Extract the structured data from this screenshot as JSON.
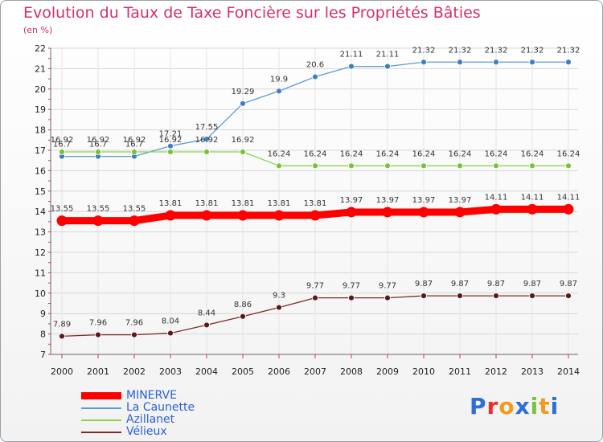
{
  "title": "Evolution du Taux de Taxe Foncière sur les Propriétés Bâties",
  "unit": "(en %)",
  "logo": {
    "text": "Proxiti",
    "colors": [
      "#2e6fd6",
      "#e8312d",
      "#f39a1e",
      "#2e6fd6",
      "#7cc242",
      "#f39a1e",
      "#2e6fd6"
    ]
  },
  "chart_data": {
    "type": "line",
    "x": [
      2000,
      2001,
      2002,
      2003,
      2004,
      2005,
      2006,
      2007,
      2008,
      2009,
      2010,
      2011,
      2012,
      2013,
      2014
    ],
    "ylim": [
      7,
      22
    ],
    "yticks": [
      7,
      8,
      9,
      10,
      11,
      12,
      13,
      14,
      15,
      16,
      17,
      18,
      19,
      20,
      21,
      22
    ],
    "grid": true,
    "series": [
      {
        "name": "MINERVE",
        "color": "#ff0000",
        "values": [
          13.55,
          13.55,
          13.55,
          13.81,
          13.81,
          13.81,
          13.81,
          13.81,
          13.97,
          13.97,
          13.97,
          13.97,
          14.11,
          14.11,
          14.11
        ],
        "labels": [
          "13.55",
          "13.55",
          "13.55",
          "13.81",
          "13.81",
          "13.81",
          "13.81",
          "13.81",
          "13.97",
          "13.97",
          "13.97",
          "13.97",
          "14.11",
          "14.11",
          "14.11"
        ]
      },
      {
        "name": "La Caunette",
        "color": "#5b9bd5",
        "values": [
          16.7,
          16.7,
          16.7,
          17.21,
          17.55,
          19.29,
          19.9,
          20.6,
          21.11,
          21.11,
          21.32,
          21.32,
          21.32,
          21.32,
          21.32
        ],
        "labels": [
          "16.7",
          "16.7",
          "16.7",
          "17.21",
          "17.55",
          "19.29",
          "19.9",
          "20.6",
          "21.11",
          "21.11",
          "21.32",
          "21.32",
          "21.32",
          "21.32",
          "21.32"
        ]
      },
      {
        "name": "Azillanet",
        "color": "#8fd14f",
        "values": [
          16.92,
          16.92,
          16.92,
          16.92,
          16.92,
          16.92,
          16.24,
          16.24,
          16.24,
          16.24,
          16.24,
          16.24,
          16.24,
          16.24,
          16.24
        ],
        "labels": [
          "16.92",
          "16.92",
          "16.92",
          "16.92",
          "16.92",
          "16.92",
          "16.24",
          "16.24",
          "16.24",
          "16.24",
          "16.24",
          "16.24",
          "16.24",
          "16.24",
          "16.24"
        ]
      },
      {
        "name": "Vélieux",
        "color": "#7b2a2a",
        "values": [
          7.89,
          7.96,
          7.96,
          8.04,
          8.44,
          8.86,
          9.3,
          9.77,
          9.77,
          9.77,
          9.87,
          9.87,
          9.87,
          9.87,
          9.87
        ],
        "labels": [
          "7.89",
          "7.96",
          "7.96",
          "8.04",
          "8.44",
          "8.86",
          "9.3",
          "9.77",
          "9.77",
          "9.77",
          "9.87",
          "9.87",
          "9.87",
          "9.87",
          "9.87"
        ]
      }
    ]
  }
}
